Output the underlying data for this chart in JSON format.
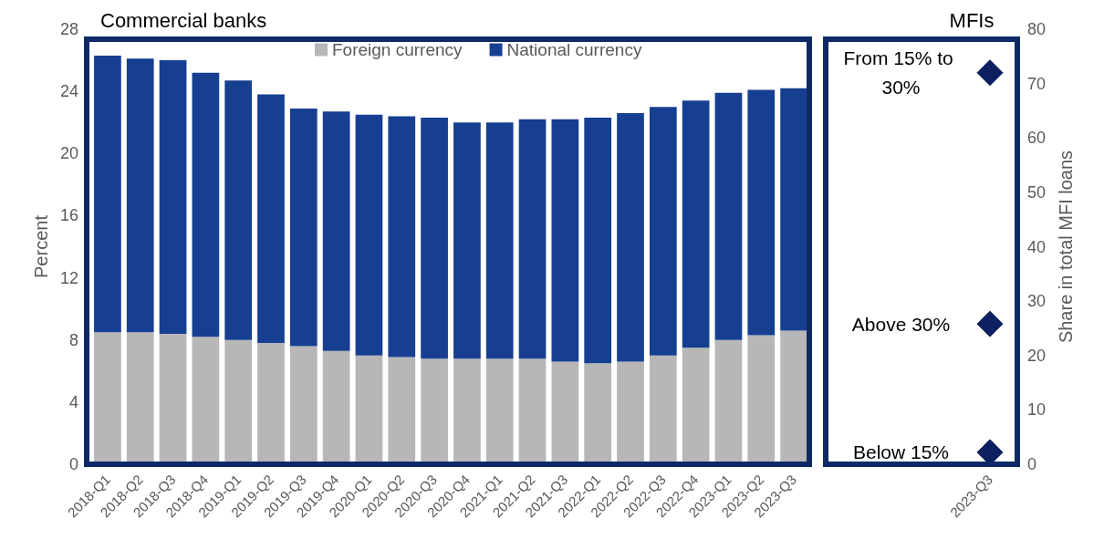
{
  "chart_data": [
    {
      "type": "bar",
      "title": "Commercial banks",
      "ylabel": "Percent",
      "categories": [
        "2018-Q1",
        "2018-Q2",
        "2018-Q3",
        "2018-Q4",
        "2019-Q1",
        "2019-Q2",
        "2019-Q3",
        "2019-Q4",
        "2020-Q1",
        "2020-Q2",
        "2020-Q3",
        "2020-Q4",
        "2021-Q1",
        "2021-Q2",
        "2021-Q3",
        "2022-Q1",
        "2022-Q2",
        "2022-Q3",
        "2022-Q4",
        "2023-Q1",
        "2023-Q2",
        "2023-Q3"
      ],
      "series": [
        {
          "name": "Foreign currency",
          "color": "#b7b7b7",
          "values": [
            8.5,
            8.5,
            8.4,
            8.2,
            8.0,
            7.8,
            7.6,
            7.3,
            7.0,
            6.9,
            6.8,
            6.8,
            6.8,
            6.8,
            6.6,
            6.5,
            6.6,
            7.0,
            7.5,
            8.0,
            8.3,
            8.6
          ]
        },
        {
          "name": "National currency",
          "color": "#173f91",
          "values": [
            17.8,
            17.6,
            17.6,
            17.0,
            16.7,
            16.0,
            15.3,
            15.4,
            15.5,
            15.5,
            15.5,
            15.2,
            15.2,
            15.4,
            15.6,
            15.8,
            16.0,
            16.0,
            15.9,
            15.9,
            15.8,
            15.6
          ]
        }
      ],
      "stacked": true,
      "ylim": [
        0,
        28
      ],
      "yticks": [
        0,
        4,
        8,
        12,
        16,
        20,
        24,
        28
      ],
      "legend": "top",
      "grid": false
    },
    {
      "type": "scatter",
      "title": "MFIs",
      "y2label": "Share in total MFI loans",
      "categories": [
        "2023-Q3"
      ],
      "series": [
        {
          "name": "From 15% to 30%",
          "color": "#0c1f5e",
          "values": [
            72
          ],
          "axis": "y2"
        },
        {
          "name": "Above 30%",
          "color": "#0c1f5e",
          "values": [
            25.8
          ],
          "axis": "y2"
        },
        {
          "name": "Below 15%",
          "color": "#0c1f5e",
          "values": [
            2.2
          ],
          "axis": "y2"
        }
      ],
      "y2lim": [
        0,
        80
      ],
      "y2ticks": [
        0,
        10,
        20,
        30,
        40,
        50,
        60,
        70,
        80
      ],
      "marker": "diamond",
      "legend": false,
      "grid": false
    }
  ]
}
